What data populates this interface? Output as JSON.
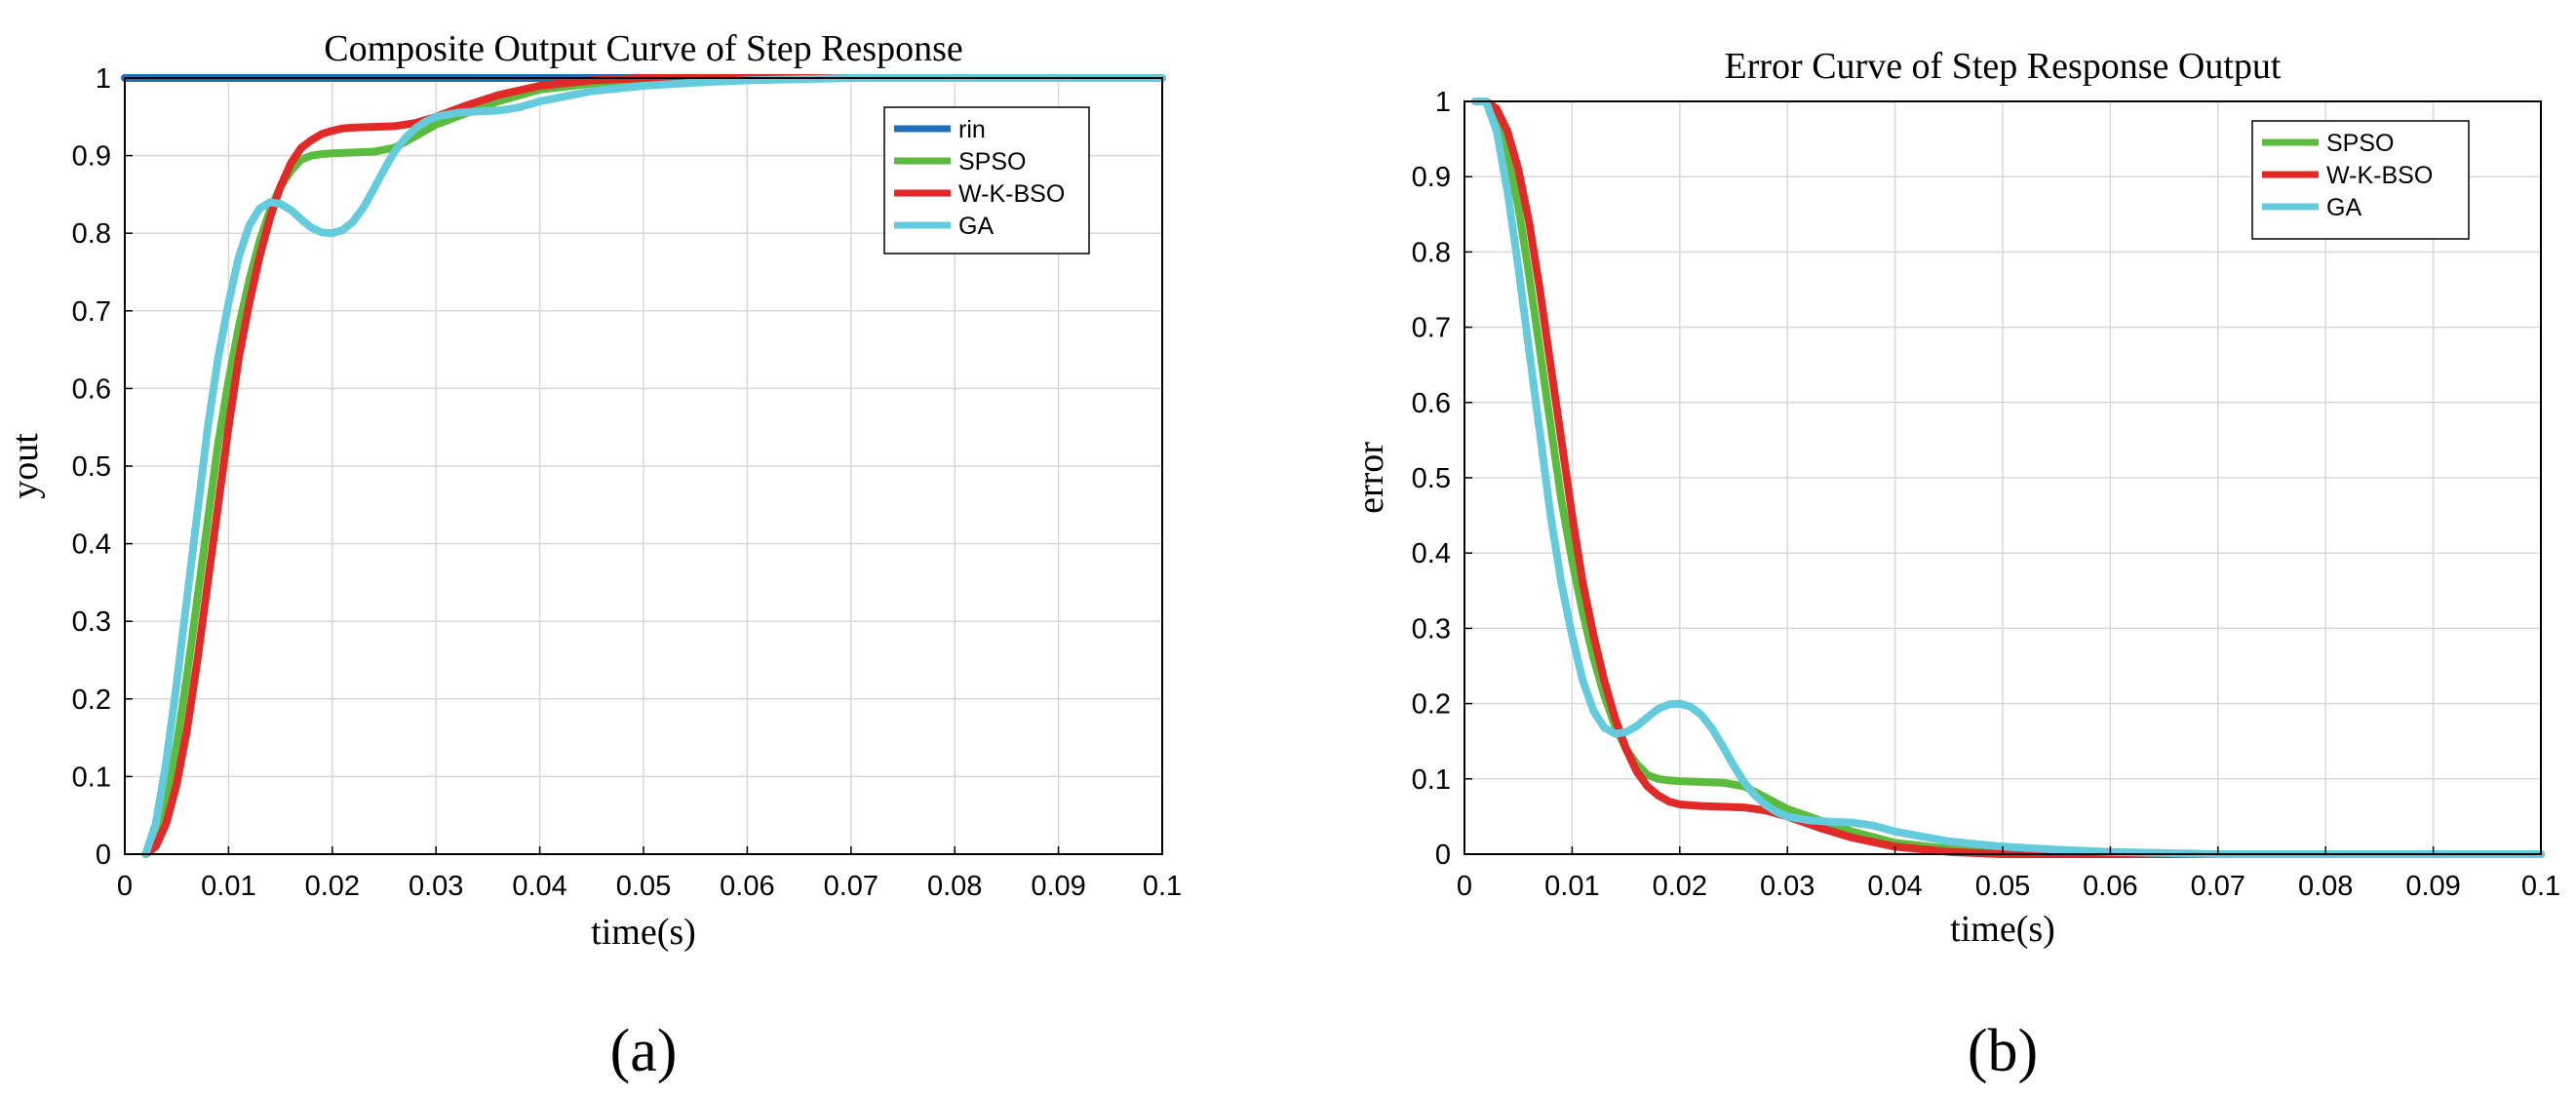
{
  "colors": {
    "rin": "#1f6fb4",
    "SPSO": "#5bbb3d",
    "W-K-BSO": "#e12a27",
    "GA": "#63cbdb",
    "grid": "#d8d8d8"
  },
  "chart_data": [
    {
      "type": "line",
      "panel_label": "(a)",
      "title": "Composite Output Curve of Step Response",
      "xlabel": "time(s)",
      "ylabel": "yout",
      "xlim": [
        0,
        0.1
      ],
      "ylim": [
        0,
        1
      ],
      "grid": true,
      "legend_position": "top-right",
      "xticks": [
        "0",
        "0.01",
        "0.02",
        "0.03",
        "0.04",
        "0.05",
        "0.06",
        "0.07",
        "0.08",
        "0.09",
        "0.1"
      ],
      "yticks": [
        "0",
        "0.1",
        "0.2",
        "0.3",
        "0.4",
        "0.5",
        "0.6",
        "0.7",
        "0.8",
        "0.9",
        "1"
      ],
      "series": [
        {
          "name": "rin",
          "colorKey": "rin",
          "x": [
            0,
            0.1
          ],
          "y": [
            1,
            1
          ]
        },
        {
          "name": "SPSO",
          "colorKey": "SPSO",
          "x": [
            0.002,
            0.003,
            0.004,
            0.005,
            0.006,
            0.007,
            0.008,
            0.009,
            0.01,
            0.011,
            0.012,
            0.013,
            0.014,
            0.015,
            0.016,
            0.017,
            0.018,
            0.019,
            0.02,
            0.022,
            0.024,
            0.026,
            0.028,
            0.03,
            0.033,
            0.036,
            0.04,
            0.045,
            0.05,
            0.06,
            0.07,
            0.08,
            0.09,
            0.1
          ],
          "y": [
            0,
            0.02,
            0.07,
            0.14,
            0.23,
            0.33,
            0.43,
            0.53,
            0.61,
            0.68,
            0.74,
            0.79,
            0.83,
            0.86,
            0.88,
            0.895,
            0.9,
            0.902,
            0.903,
            0.904,
            0.905,
            0.91,
            0.925,
            0.94,
            0.955,
            0.97,
            0.985,
            0.993,
            0.997,
            1.0,
            1.0,
            1.0,
            1.0,
            1.0
          ]
        },
        {
          "name": "W-K-BSO",
          "colorKey": "W-K-BSO",
          "x": [
            0.002,
            0.003,
            0.004,
            0.005,
            0.006,
            0.007,
            0.008,
            0.009,
            0.01,
            0.011,
            0.012,
            0.013,
            0.014,
            0.015,
            0.016,
            0.017,
            0.018,
            0.019,
            0.02,
            0.021,
            0.022,
            0.024,
            0.026,
            0.028,
            0.03,
            0.033,
            0.036,
            0.04,
            0.045,
            0.05,
            0.06,
            0.07,
            0.08,
            0.09,
            0.1
          ],
          "y": [
            0,
            0.01,
            0.04,
            0.09,
            0.16,
            0.25,
            0.35,
            0.45,
            0.55,
            0.64,
            0.71,
            0.77,
            0.82,
            0.86,
            0.89,
            0.91,
            0.92,
            0.928,
            0.932,
            0.935,
            0.936,
            0.937,
            0.938,
            0.942,
            0.95,
            0.965,
            0.978,
            0.99,
            0.997,
            1.0,
            1.0,
            1.0,
            1.0,
            1.0,
            1.0
          ]
        },
        {
          "name": "GA",
          "colorKey": "GA",
          "x": [
            0.002,
            0.003,
            0.004,
            0.005,
            0.006,
            0.007,
            0.008,
            0.009,
            0.01,
            0.011,
            0.012,
            0.013,
            0.014,
            0.015,
            0.016,
            0.017,
            0.018,
            0.019,
            0.02,
            0.021,
            0.022,
            0.023,
            0.024,
            0.025,
            0.026,
            0.027,
            0.028,
            0.029,
            0.03,
            0.032,
            0.034,
            0.036,
            0.038,
            0.04,
            0.045,
            0.05,
            0.055,
            0.06,
            0.07,
            0.08,
            0.09,
            0.1
          ],
          "y": [
            0,
            0.04,
            0.12,
            0.22,
            0.33,
            0.44,
            0.55,
            0.64,
            0.71,
            0.77,
            0.81,
            0.832,
            0.84,
            0.838,
            0.83,
            0.818,
            0.807,
            0.801,
            0.8,
            0.804,
            0.815,
            0.833,
            0.857,
            0.882,
            0.905,
            0.922,
            0.935,
            0.944,
            0.95,
            0.955,
            0.957,
            0.958,
            0.962,
            0.97,
            0.983,
            0.99,
            0.994,
            0.997,
            1.0,
            1.0,
            1.0,
            1.0
          ]
        }
      ]
    },
    {
      "type": "line",
      "panel_label": "(b)",
      "title": "Error Curve of Step Response Output",
      "xlabel": "time(s)",
      "ylabel": "error",
      "xlim": [
        0,
        0.1
      ],
      "ylim": [
        0,
        1
      ],
      "grid": true,
      "legend_position": "top-right",
      "xticks": [
        "0",
        "0.01",
        "0.02",
        "0.03",
        "0.04",
        "0.05",
        "0.06",
        "0.07",
        "0.08",
        "0.09",
        "0.1"
      ],
      "yticks": [
        "0",
        "0.1",
        "0.2",
        "0.3",
        "0.4",
        "0.5",
        "0.6",
        "0.7",
        "0.8",
        "0.9",
        "1"
      ],
      "series": [
        {
          "name": "SPSO",
          "colorKey": "SPSO",
          "x": [
            0.001,
            0.002,
            0.003,
            0.004,
            0.005,
            0.006,
            0.007,
            0.008,
            0.009,
            0.01,
            0.011,
            0.012,
            0.013,
            0.014,
            0.015,
            0.016,
            0.017,
            0.018,
            0.019,
            0.02,
            0.022,
            0.024,
            0.026,
            0.028,
            0.03,
            0.033,
            0.036,
            0.04,
            0.045,
            0.05,
            0.06,
            0.07,
            0.08,
            0.09,
            0.1
          ],
          "y": [
            1.0,
            1.0,
            0.98,
            0.93,
            0.86,
            0.77,
            0.67,
            0.57,
            0.47,
            0.39,
            0.32,
            0.26,
            0.21,
            0.17,
            0.14,
            0.12,
            0.105,
            0.1,
            0.098,
            0.097,
            0.096,
            0.095,
            0.09,
            0.075,
            0.06,
            0.045,
            0.03,
            0.015,
            0.007,
            0.003,
            0,
            0,
            0,
            0,
            0
          ]
        },
        {
          "name": "W-K-BSO",
          "colorKey": "W-K-BSO",
          "x": [
            0.001,
            0.002,
            0.003,
            0.004,
            0.005,
            0.006,
            0.007,
            0.008,
            0.009,
            0.01,
            0.011,
            0.012,
            0.013,
            0.014,
            0.015,
            0.016,
            0.017,
            0.018,
            0.019,
            0.02,
            0.022,
            0.024,
            0.026,
            0.028,
            0.03,
            0.033,
            0.036,
            0.04,
            0.045,
            0.05,
            0.06,
            0.07,
            0.08,
            0.09,
            0.1
          ],
          "y": [
            1.0,
            1.0,
            0.99,
            0.96,
            0.91,
            0.84,
            0.75,
            0.65,
            0.55,
            0.45,
            0.36,
            0.29,
            0.23,
            0.18,
            0.14,
            0.11,
            0.09,
            0.078,
            0.07,
            0.066,
            0.064,
            0.063,
            0.062,
            0.058,
            0.05,
            0.035,
            0.022,
            0.01,
            0.003,
            0,
            0,
            0,
            0,
            0,
            0
          ]
        },
        {
          "name": "GA",
          "colorKey": "GA",
          "x": [
            0.001,
            0.002,
            0.003,
            0.004,
            0.005,
            0.006,
            0.007,
            0.008,
            0.009,
            0.01,
            0.011,
            0.012,
            0.013,
            0.014,
            0.015,
            0.016,
            0.017,
            0.018,
            0.019,
            0.02,
            0.021,
            0.022,
            0.023,
            0.024,
            0.025,
            0.026,
            0.027,
            0.028,
            0.029,
            0.03,
            0.032,
            0.034,
            0.036,
            0.038,
            0.04,
            0.045,
            0.05,
            0.055,
            0.06,
            0.07,
            0.08,
            0.09,
            0.1
          ],
          "y": [
            1.0,
            1.0,
            0.96,
            0.88,
            0.78,
            0.67,
            0.56,
            0.45,
            0.36,
            0.29,
            0.23,
            0.19,
            0.168,
            0.16,
            0.162,
            0.17,
            0.182,
            0.193,
            0.199,
            0.2,
            0.196,
            0.185,
            0.167,
            0.143,
            0.118,
            0.095,
            0.078,
            0.065,
            0.056,
            0.05,
            0.045,
            0.043,
            0.042,
            0.038,
            0.03,
            0.017,
            0.01,
            0.006,
            0.003,
            0,
            0,
            0,
            0
          ]
        }
      ]
    }
  ]
}
